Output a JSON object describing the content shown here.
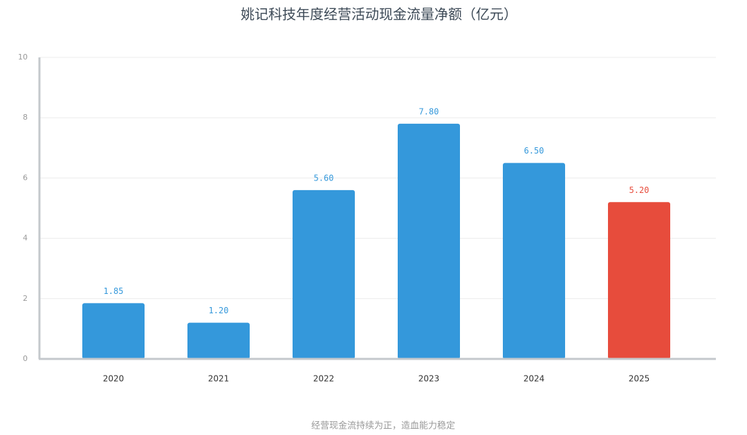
{
  "chart_data": {
    "type": "bar",
    "title": "姚记科技年度经营活动现金流量净额（亿元）",
    "categories": [
      "2020",
      "2021",
      "2022",
      "2023",
      "2024",
      "2025"
    ],
    "values": [
      1.85,
      1.2,
      5.6,
      7.8,
      6.5,
      5.2
    ],
    "value_labels": [
      "1.85",
      "1.20",
      "5.60",
      "7.80",
      "6.50",
      "5.20"
    ],
    "colors": [
      "#3498db",
      "#3498db",
      "#3498db",
      "#3498db",
      "#3498db",
      "#e74c3c"
    ],
    "ylim": [
      0,
      10
    ],
    "yticks": [
      0,
      2,
      4,
      6,
      8,
      10
    ],
    "grid": true,
    "note": "经营现金流持续为正，造血能力稳定"
  }
}
